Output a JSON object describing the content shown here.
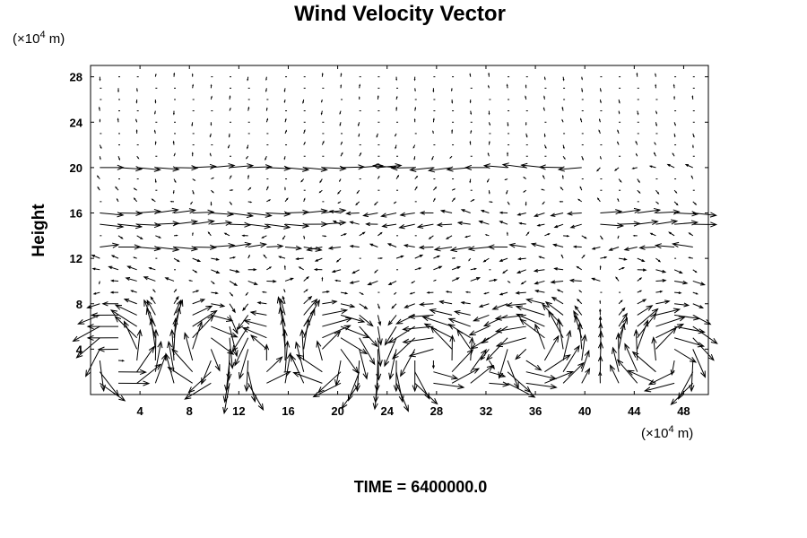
{
  "chart_data": {
    "type": "quiver",
    "title": "Wind Velocity Vector",
    "ylabel": "Height",
    "y_unit": "(×10",
    "y_unit_exp": "4",
    "y_unit_tail": " m)",
    "x_unit": "(×10",
    "x_unit_exp": "4",
    "x_unit_tail": " m)",
    "footer": "TIME = 6400000.0",
    "xlim": [
      0,
      50
    ],
    "ylim": [
      0,
      29
    ],
    "x_ticks": [
      "4",
      "8",
      "12",
      "16",
      "20",
      "24",
      "28",
      "32",
      "36",
      "40",
      "44",
      "48"
    ],
    "y_ticks": [
      "4",
      "8",
      "12",
      "16",
      "20",
      "24",
      "28"
    ],
    "grid": false,
    "arrow_color": "#000000"
  }
}
